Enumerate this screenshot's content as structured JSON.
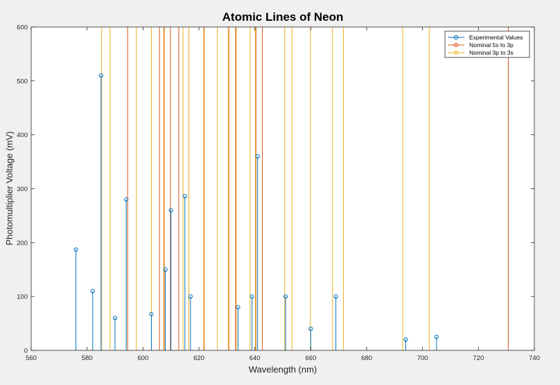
{
  "chart_data": {
    "type": "stem",
    "title": "Atomic Lines of Neon",
    "xlabel": "Wavelength (nm)",
    "ylabel": "Photomultiplier Voltage (mV)",
    "xlim": [
      560,
      740
    ],
    "ylim": [
      0,
      600
    ],
    "xticks": [
      560,
      580,
      600,
      620,
      640,
      660,
      680,
      700,
      720,
      740
    ],
    "yticks": [
      0,
      100,
      200,
      300,
      400,
      500,
      600
    ],
    "grid": false,
    "legend_position": "top-right",
    "series": [
      {
        "name": "Experimental Values",
        "kind": "stem",
        "color": "#0072bd",
        "points": [
          {
            "x": 576,
            "y": 187
          },
          {
            "x": 582,
            "y": 110
          },
          {
            "x": 585,
            "y": 510
          },
          {
            "x": 590,
            "y": 60
          },
          {
            "x": 594,
            "y": 280
          },
          {
            "x": 603,
            "y": 67
          },
          {
            "x": 608,
            "y": 150
          },
          {
            "x": 610,
            "y": 260
          },
          {
            "x": 615,
            "y": 286
          },
          {
            "x": 617,
            "y": 100
          },
          {
            "x": 634,
            "y": 80
          },
          {
            "x": 639,
            "y": 100
          },
          {
            "x": 641,
            "y": 360
          },
          {
            "x": 651,
            "y": 100
          },
          {
            "x": 660,
            "y": 40
          },
          {
            "x": 669,
            "y": 100
          },
          {
            "x": 694,
            "y": 20
          },
          {
            "x": 705,
            "y": 25
          }
        ]
      },
      {
        "name": "Nominal 5s to 3p",
        "kind": "vline",
        "color": "#d95319",
        "x": [
          594.5,
          605.9,
          607.6,
          609.8,
          612.8,
          616.4,
          621.9,
          630.7,
          633.1,
          640.4,
          642.7,
          730.7
        ]
      },
      {
        "name": "Nominal 3p to 3s",
        "kind": "vline",
        "color": "#edb120",
        "x": [
          585.2,
          588.2,
          597.6,
          603.0,
          607.4,
          614.3,
          616.4,
          621.7,
          626.6,
          630.5,
          633.4,
          638.3,
          640.2,
          650.7,
          653.3,
          659.9,
          667.8,
          671.7,
          692.9,
          702.4
        ]
      }
    ]
  }
}
